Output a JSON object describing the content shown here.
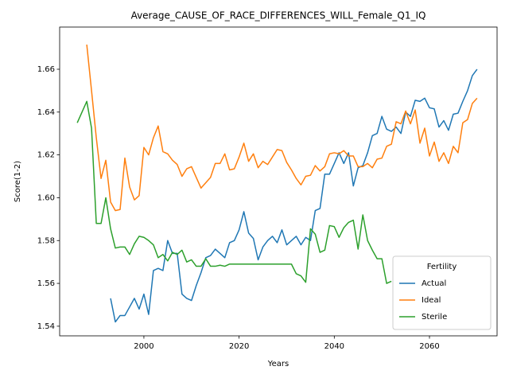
{
  "chart_data": {
    "type": "line",
    "title": "Average_CAUSE_OF_RACE_DIFFERENCES_WILL_Female_Q1_IQ",
    "x_label": "Years",
    "y_label": "Score(1-2)",
    "legend_title": "Fertility",
    "legend": "lower right",
    "xlim": [
      1982.3,
      2074.2
    ],
    "ylim": [
      1.5355,
      1.6797
    ],
    "xticks": [
      2000,
      2020,
      2040,
      2060
    ],
    "yticks": [
      1.54,
      1.56,
      1.58,
      {
        "value": 1.6,
        "label": "1.60"
      },
      1.62,
      1.64,
      1.66
    ],
    "series": [
      {
        "name": "Actual",
        "color": "#1f77b4",
        "x": [
          1993,
          1994,
          1995,
          1996,
          1997,
          1998,
          1999,
          2000,
          2001,
          2002,
          2003,
          2004,
          2005,
          2006,
          2007,
          2008,
          2009,
          2010,
          2011,
          2012,
          2013,
          2014,
          2015,
          2016,
          2017,
          2018,
          2019,
          2020,
          2021,
          2022,
          2023,
          2024,
          2025,
          2026,
          2027,
          2028,
          2029,
          2030,
          2031,
          2032,
          2033,
          2034,
          2035,
          2036,
          2037,
          2038,
          2039,
          2040,
          2041,
          2042,
          2043,
          2044,
          2045,
          2046,
          2047,
          2048,
          2049,
          2050,
          2051,
          2052,
          2053,
          2054,
          2055,
          2056,
          2057,
          2058,
          2059,
          2060,
          2061,
          2062,
          2063,
          2064,
          2065,
          2066,
          2067,
          2068,
          2069,
          2070
        ],
        "values": [
          1.553,
          1.542,
          1.545,
          1.545,
          1.549,
          1.553,
          1.548,
          1.555,
          1.5455,
          1.566,
          1.567,
          1.566,
          1.58,
          1.574,
          1.574,
          1.555,
          1.553,
          1.552,
          1.559,
          1.565,
          1.572,
          1.573,
          1.576,
          1.574,
          1.572,
          1.579,
          1.58,
          1.585,
          1.5935,
          1.5835,
          1.581,
          1.571,
          1.577,
          1.58,
          1.582,
          1.579,
          1.585,
          1.578,
          1.58,
          1.582,
          1.578,
          1.5815,
          1.58,
          1.594,
          1.595,
          1.611,
          1.611,
          1.616,
          1.621,
          1.616,
          1.621,
          1.6055,
          1.614,
          1.615,
          1.621,
          1.629,
          1.63,
          1.638,
          1.632,
          1.631,
          1.633,
          1.63,
          1.64,
          1.638,
          1.6455,
          1.645,
          1.6465,
          1.642,
          1.6415,
          1.633,
          1.636,
          1.6315,
          1.639,
          1.6395,
          1.645,
          1.65,
          1.657,
          1.66
        ]
      },
      {
        "name": "Ideal",
        "color": "#ff7f0e",
        "x": [
          1988,
          1989,
          1990,
          1991,
          1992,
          1993,
          1994,
          1995,
          1996,
          1997,
          1998,
          1999,
          2000,
          2001,
          2002,
          2003,
          2004,
          2005,
          2006,
          2007,
          2008,
          2009,
          2010,
          2011,
          2012,
          2013,
          2014,
          2015,
          2016,
          2017,
          2018,
          2019,
          2020,
          2021,
          2022,
          2023,
          2024,
          2025,
          2026,
          2027,
          2028,
          2029,
          2030,
          2031,
          2032,
          2033,
          2034,
          2035,
          2036,
          2037,
          2038,
          2039,
          2040,
          2041,
          2042,
          2043,
          2044,
          2045,
          2046,
          2047,
          2048,
          2049,
          2050,
          2051,
          2052,
          2053,
          2054,
          2055,
          2056,
          2057,
          2058,
          2059,
          2060,
          2061,
          2062,
          2063,
          2064,
          2065,
          2066,
          2067,
          2068,
          2069,
          2070
        ],
        "values": [
          1.6715,
          1.65,
          1.628,
          1.609,
          1.6175,
          1.598,
          1.594,
          1.5945,
          1.6185,
          1.605,
          1.599,
          1.601,
          1.6235,
          1.62,
          1.628,
          1.6335,
          1.6215,
          1.6205,
          1.6175,
          1.6155,
          1.61,
          1.6135,
          1.6145,
          1.6095,
          1.6045,
          1.607,
          1.6095,
          1.616,
          1.616,
          1.6205,
          1.613,
          1.6135,
          1.619,
          1.6255,
          1.617,
          1.6205,
          1.614,
          1.617,
          1.6155,
          1.619,
          1.6225,
          1.622,
          1.6165,
          1.613,
          1.609,
          1.606,
          1.61,
          1.6105,
          1.615,
          1.6125,
          1.6145,
          1.6205,
          1.621,
          1.6205,
          1.622,
          1.6195,
          1.6195,
          1.6145,
          1.6145,
          1.616,
          1.614,
          1.618,
          1.6185,
          1.624,
          1.625,
          1.6355,
          1.6345,
          1.6405,
          1.6345,
          1.641,
          1.6255,
          1.6325,
          1.6195,
          1.626,
          1.617,
          1.621,
          1.616,
          1.624,
          1.621,
          1.635,
          1.6365,
          1.644,
          1.6465
        ]
      },
      {
        "name": "Sterile",
        "color": "#2ca02c",
        "x": [
          1986,
          1987,
          1988,
          1989,
          1990,
          1991,
          1992,
          1993,
          1994,
          1995,
          1996,
          1997,
          1998,
          1999,
          2000,
          2001,
          2002,
          2003,
          2004,
          2005,
          2006,
          2007,
          2008,
          2009,
          2010,
          2011,
          2012,
          2013,
          2014,
          2015,
          2016,
          2017,
          2018,
          2019,
          2020,
          2021,
          2022,
          2023,
          2024,
          2025,
          2026,
          2027,
          2028,
          2029,
          2030,
          2031,
          2032,
          2033,
          2034,
          2035,
          2036,
          2037,
          2038,
          2039,
          2040,
          2041,
          2042,
          2043,
          2044,
          2045,
          2046,
          2047,
          2048,
          2049,
          2050,
          2051,
          2052
        ],
        "values": [
          1.635,
          1.64,
          1.645,
          1.6325,
          1.588,
          1.588,
          1.6,
          1.5855,
          1.5765,
          1.577,
          1.577,
          1.5735,
          1.5785,
          1.582,
          1.5815,
          1.58,
          1.578,
          1.572,
          1.5735,
          1.5705,
          1.5745,
          1.5735,
          1.5755,
          1.57,
          1.571,
          1.568,
          1.568,
          1.5715,
          1.568,
          1.568,
          1.5685,
          1.568,
          1.569,
          1.569,
          1.569,
          1.569,
          1.569,
          1.569,
          1.569,
          1.569,
          1.569,
          1.569,
          1.569,
          1.569,
          1.569,
          1.569,
          1.5645,
          1.5635,
          1.5605,
          1.5855,
          1.583,
          1.5745,
          1.5755,
          1.587,
          1.5865,
          1.5815,
          1.586,
          1.5885,
          1.5895,
          1.576,
          1.592,
          1.58,
          1.5755,
          1.5715,
          1.5715,
          1.56,
          1.561
        ]
      }
    ]
  }
}
